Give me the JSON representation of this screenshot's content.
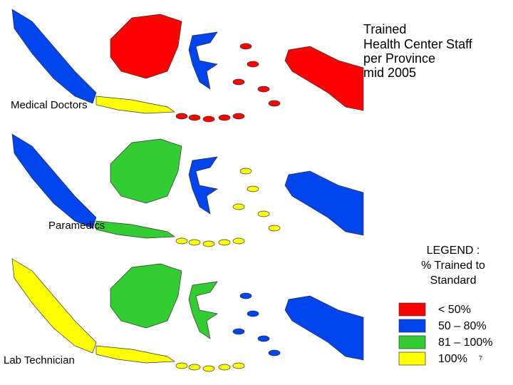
{
  "title": [
    "Trained",
    "Health Center Staff",
    "per Province",
    "mid 2005"
  ],
  "maps": [
    {
      "label": "Medical Doctors"
    },
    {
      "label": "Paramedics"
    },
    {
      "label": "Lab Technician"
    }
  ],
  "legend": {
    "title": [
      "LEGEND :",
      "% Trained to",
      "Standard"
    ],
    "items": [
      {
        "label": "< 50%",
        "color": "#ff0000"
      },
      {
        "label": "50 – 80%",
        "color": "#0044ee"
      },
      {
        "label": "81 – 100%",
        "color": "#33cc33"
      },
      {
        "label": "100%",
        "color": "#ffff00"
      }
    ]
  },
  "page_number": "7"
}
